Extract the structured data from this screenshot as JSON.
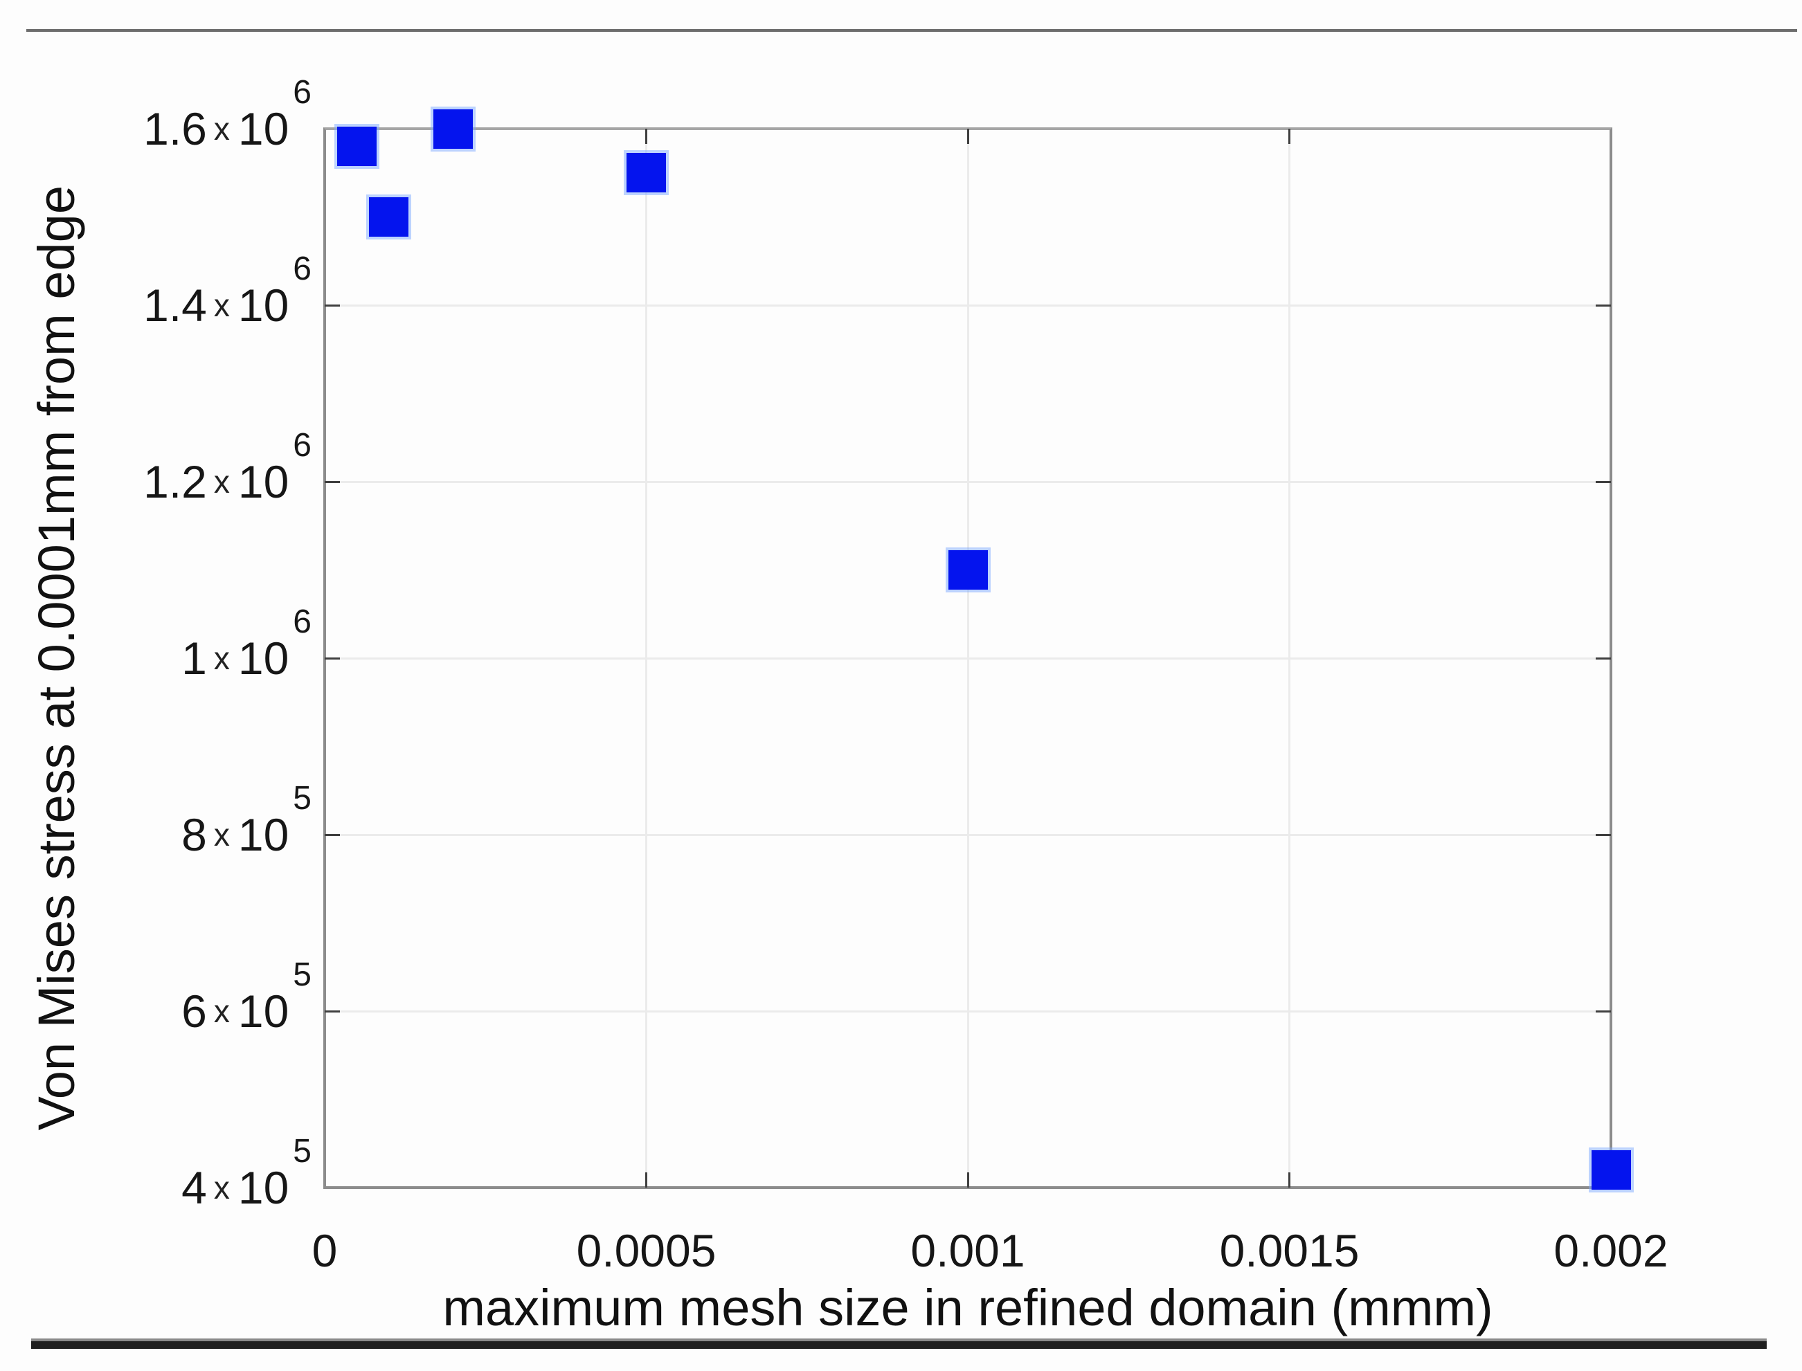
{
  "chart_data": {
    "type": "scatter",
    "title": "",
    "xlabel": "maximum mesh size in refined domain (mmm)",
    "ylabel": "Von Mises stress at 0.0001mm from edge",
    "xlim": [
      0,
      0.002
    ],
    "ylim": [
      400000,
      1600000
    ],
    "grid": true,
    "legend": false,
    "marker": {
      "shape": "square",
      "color": "#0414ee"
    },
    "points": [
      {
        "x": 5e-05,
        "y": 1580000
      },
      {
        "x": 0.0001,
        "y": 1500000
      },
      {
        "x": 0.0002,
        "y": 1600000
      },
      {
        "x": 0.0005,
        "y": 1550000
      },
      {
        "x": 0.001,
        "y": 1100000
      },
      {
        "x": 0.002,
        "y": 420000
      }
    ],
    "x_ticks": [
      {
        "value": 0,
        "label": "0"
      },
      {
        "value": 0.0005,
        "label": "0.0005"
      },
      {
        "value": 0.001,
        "label": "0.001"
      },
      {
        "value": 0.0015,
        "label": "0.0015"
      },
      {
        "value": 0.002,
        "label": "0.002"
      }
    ],
    "y_ticks": [
      {
        "value": 1600000,
        "coeff": "1.6",
        "times": "x",
        "base": "10",
        "exp": "6"
      },
      {
        "value": 1400000,
        "coeff": "1.4",
        "times": "x",
        "base": "10",
        "exp": "6"
      },
      {
        "value": 1200000,
        "coeff": "1.2",
        "times": "x",
        "base": "10",
        "exp": "6"
      },
      {
        "value": 1000000,
        "coeff": "1",
        "times": "x",
        "base": "10",
        "exp": "6"
      },
      {
        "value": 800000,
        "coeff": "8",
        "times": "x",
        "base": "10",
        "exp": "5"
      },
      {
        "value": 600000,
        "coeff": "6",
        "times": "x",
        "base": "10",
        "exp": "5"
      },
      {
        "value": 400000,
        "coeff": "4",
        "times": "x",
        "base": "10",
        "exp": "5"
      }
    ]
  }
}
